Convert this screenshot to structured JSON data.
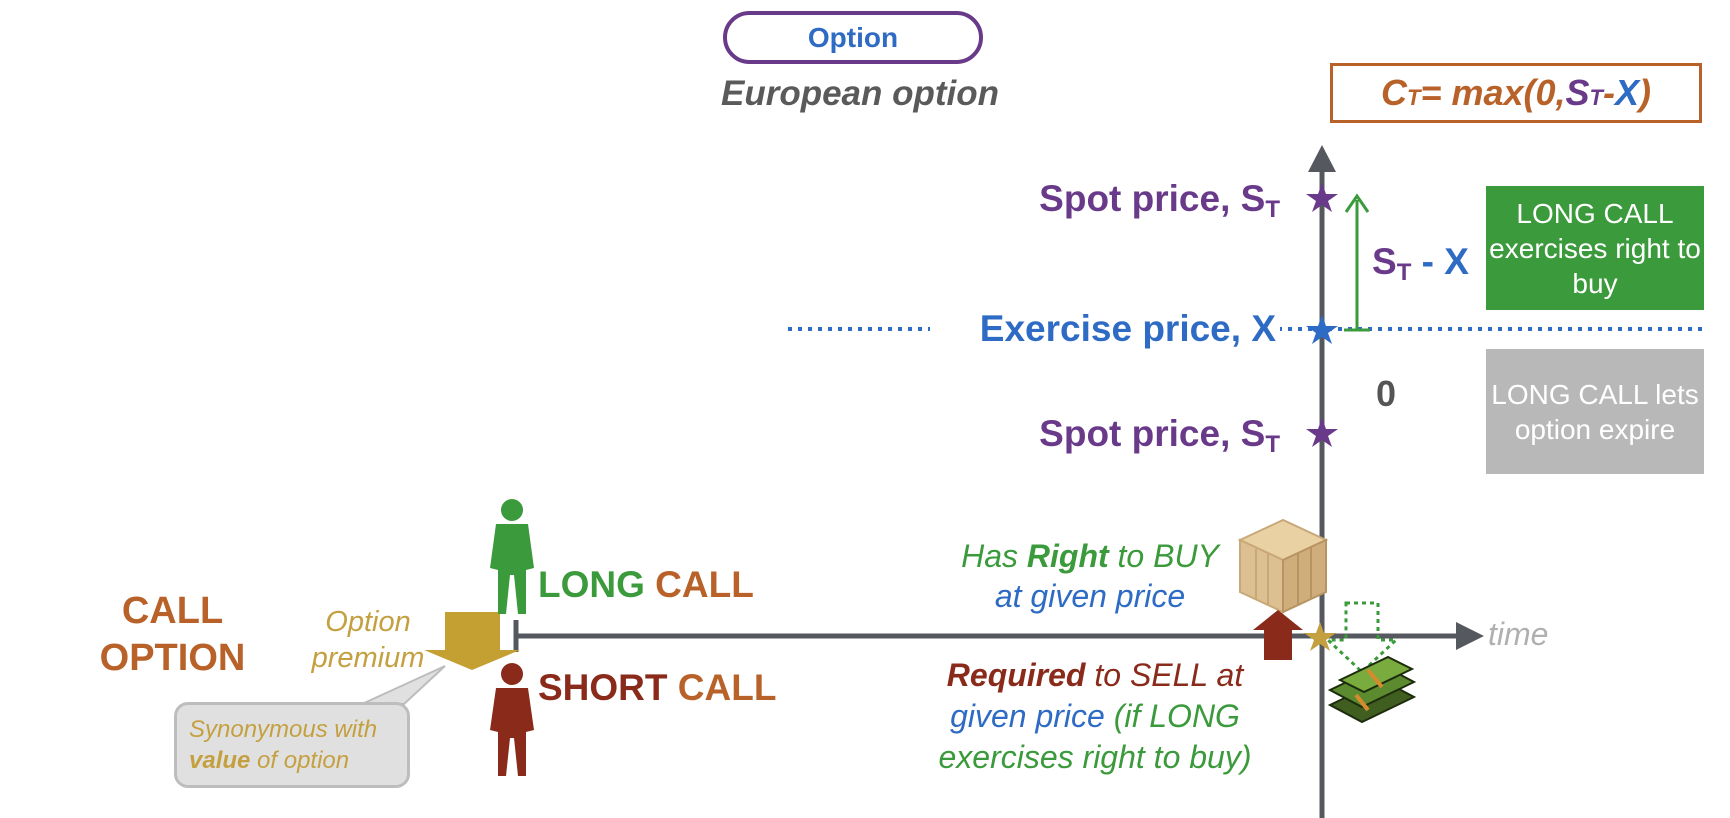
{
  "header": {
    "pill_label": "Option",
    "subtitle": "European option"
  },
  "formula": {
    "c": "C",
    "sub_t": "T",
    "max_open": " = max(0, ",
    "s": "S",
    "minus": " - ",
    "x": "X",
    "close": ")"
  },
  "axis": {
    "spot_top_text": "Spot price, S",
    "spot_bottom_text": "Spot price, S",
    "spot_sub": "T",
    "exercise_text": "Exercise price, X",
    "diff_s": "S",
    "diff_sub": "T",
    "diff_rest": " - X",
    "zero": "0",
    "time": "time"
  },
  "outcomes": {
    "exercise_box": "LONG CALL exercises right to buy",
    "expire_box": "LONG CALL lets option expire"
  },
  "left": {
    "call_option": "CALL OPTION",
    "premium": "Option premium",
    "bubble_pre": "Synonymous with",
    "bubble_bold": "value",
    "bubble_post": " of option"
  },
  "parties": {
    "long_prefix": "LONG ",
    "long_suffix": "CALL",
    "short_prefix": "SHORT ",
    "short_suffix": "CALL"
  },
  "rights": {
    "has": "Has ",
    "right": "Right",
    "to_buy": " to BUY",
    "at_given_price": "at given price",
    "required": "Required",
    "to_sell_at": " to SELL at",
    "given_price": "given price",
    "if_long": " (if LONG",
    "exercises": "exercises right to buy)"
  },
  "colors": {
    "purple": "#6a3a8a",
    "blue": "#2e6bc4",
    "orange": "#b8622a",
    "green": "#3b9a3b",
    "maroon": "#8a2a1a",
    "gold": "#c4a040",
    "axis_gray": "#55585e"
  }
}
